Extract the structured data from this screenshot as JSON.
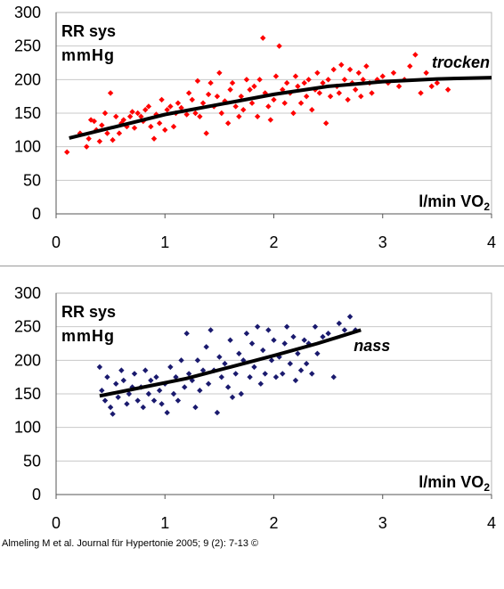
{
  "chart_data": [
    {
      "type": "scatter",
      "ylabel": "RR sys",
      "yunit": "mmHg",
      "xlabel_prefix": "l/min VO",
      "xlabel_sub": "2",
      "series_label": "trocken",
      "point_color": "#ff0000",
      "trend_color": "#000000",
      "xlim": [
        0,
        4
      ],
      "ylim": [
        0,
        300
      ],
      "xticks": [
        0,
        1,
        2,
        3,
        4
      ],
      "yticks": [
        0,
        50,
        100,
        150,
        200,
        250,
        300
      ],
      "grid": "horizontal",
      "trend": {
        "x": [
          0.12,
          0.5,
          1.0,
          1.5,
          2.0,
          2.5,
          3.0,
          3.5,
          4.0
        ],
        "y": [
          113,
          128,
          148,
          163,
          178,
          190,
          197,
          201,
          203
        ]
      },
      "points": [
        [
          0.1,
          92
        ],
        [
          0.22,
          120
        ],
        [
          0.28,
          100
        ],
        [
          0.3,
          112
        ],
        [
          0.32,
          140
        ],
        [
          0.35,
          138
        ],
        [
          0.37,
          125
        ],
        [
          0.4,
          108
        ],
        [
          0.42,
          132
        ],
        [
          0.45,
          150
        ],
        [
          0.47,
          120
        ],
        [
          0.5,
          180
        ],
        [
          0.52,
          110
        ],
        [
          0.55,
          145
        ],
        [
          0.58,
          120
        ],
        [
          0.6,
          135
        ],
        [
          0.62,
          140
        ],
        [
          0.65,
          130
        ],
        [
          0.68,
          145
        ],
        [
          0.7,
          152
        ],
        [
          0.72,
          128
        ],
        [
          0.75,
          150
        ],
        [
          0.78,
          145
        ],
        [
          0.8,
          138
        ],
        [
          0.82,
          155
        ],
        [
          0.85,
          160
        ],
        [
          0.87,
          130
        ],
        [
          0.9,
          112
        ],
        [
          0.92,
          148
        ],
        [
          0.95,
          135
        ],
        [
          0.97,
          170
        ],
        [
          1.0,
          125
        ],
        [
          1.02,
          155
        ],
        [
          1.05,
          160
        ],
        [
          1.08,
          130
        ],
        [
          1.1,
          150
        ],
        [
          1.12,
          165
        ],
        [
          1.15,
          158
        ],
        [
          1.2,
          148
        ],
        [
          1.22,
          180
        ],
        [
          1.25,
          170
        ],
        [
          1.28,
          150
        ],
        [
          1.3,
          198
        ],
        [
          1.32,
          145
        ],
        [
          1.35,
          165
        ],
        [
          1.38,
          120
        ],
        [
          1.4,
          178
        ],
        [
          1.42,
          195
        ],
        [
          1.45,
          160
        ],
        [
          1.48,
          175
        ],
        [
          1.5,
          210
        ],
        [
          1.52,
          150
        ],
        [
          1.55,
          168
        ],
        [
          1.58,
          135
        ],
        [
          1.6,
          185
        ],
        [
          1.62,
          195
        ],
        [
          1.65,
          160
        ],
        [
          1.68,
          145
        ],
        [
          1.7,
          175
        ],
        [
          1.72,
          155
        ],
        [
          1.75,
          200
        ],
        [
          1.78,
          185
        ],
        [
          1.8,
          165
        ],
        [
          1.82,
          190
        ],
        [
          1.85,
          145
        ],
        [
          1.87,
          200
        ],
        [
          1.9,
          262
        ],
        [
          1.92,
          180
        ],
        [
          1.95,
          160
        ],
        [
          1.97,
          140
        ],
        [
          2.0,
          170
        ],
        [
          2.02,
          205
        ],
        [
          2.05,
          250
        ],
        [
          2.08,
          185
        ],
        [
          2.1,
          165
        ],
        [
          2.12,
          195
        ],
        [
          2.15,
          180
        ],
        [
          2.18,
          150
        ],
        [
          2.2,
          205
        ],
        [
          2.22,
          190
        ],
        [
          2.25,
          165
        ],
        [
          2.28,
          195
        ],
        [
          2.3,
          175
        ],
        [
          2.32,
          200
        ],
        [
          2.35,
          155
        ],
        [
          2.38,
          185
        ],
        [
          2.4,
          210
        ],
        [
          2.42,
          180
        ],
        [
          2.45,
          195
        ],
        [
          2.48,
          135
        ],
        [
          2.5,
          200
        ],
        [
          2.52,
          175
        ],
        [
          2.55,
          215
        ],
        [
          2.58,
          190
        ],
        [
          2.6,
          180
        ],
        [
          2.62,
          222
        ],
        [
          2.65,
          200
        ],
        [
          2.68,
          170
        ],
        [
          2.7,
          215
        ],
        [
          2.72,
          195
        ],
        [
          2.75,
          185
        ],
        [
          2.78,
          210
        ],
        [
          2.8,
          175
        ],
        [
          2.82,
          200
        ],
        [
          2.85,
          220
        ],
        [
          2.88,
          195
        ],
        [
          2.9,
          180
        ],
        [
          2.95,
          200
        ],
        [
          3.0,
          205
        ],
        [
          3.05,
          195
        ],
        [
          3.1,
          210
        ],
        [
          3.15,
          190
        ],
        [
          3.2,
          200
        ],
        [
          3.25,
          220
        ],
        [
          3.3,
          237
        ],
        [
          3.35,
          180
        ],
        [
          3.4,
          210
        ],
        [
          3.45,
          190
        ],
        [
          3.5,
          195
        ],
        [
          3.6,
          185
        ]
      ]
    },
    {
      "type": "scatter",
      "ylabel": "RR sys",
      "yunit": "mmHg",
      "xlabel_prefix": "l/min VO",
      "xlabel_sub": "2",
      "series_label": "nass",
      "point_color": "#1a1a6e",
      "trend_color": "#000000",
      "xlim": [
        0,
        4
      ],
      "ylim": [
        0,
        300
      ],
      "xticks": [
        0,
        1,
        2,
        3,
        4
      ],
      "yticks": [
        0,
        50,
        100,
        150,
        200,
        250,
        300
      ],
      "grid": "horizontal",
      "trend": {
        "x": [
          0.4,
          0.8,
          1.2,
          1.6,
          2.0,
          2.4,
          2.8
        ],
        "y": [
          147,
          160,
          173,
          190,
          207,
          225,
          245
        ]
      },
      "points": [
        [
          0.4,
          190
        ],
        [
          0.42,
          155
        ],
        [
          0.45,
          140
        ],
        [
          0.47,
          175
        ],
        [
          0.5,
          130
        ],
        [
          0.52,
          120
        ],
        [
          0.55,
          165
        ],
        [
          0.57,
          145
        ],
        [
          0.6,
          185
        ],
        [
          0.62,
          170
        ],
        [
          0.65,
          135
        ],
        [
          0.67,
          150
        ],
        [
          0.7,
          160
        ],
        [
          0.72,
          180
        ],
        [
          0.75,
          140
        ],
        [
          0.78,
          160
        ],
        [
          0.8,
          130
        ],
        [
          0.82,
          185
        ],
        [
          0.85,
          150
        ],
        [
          0.87,
          170
        ],
        [
          0.9,
          140
        ],
        [
          0.92,
          175
        ],
        [
          0.95,
          155
        ],
        [
          0.97,
          135
        ],
        [
          1.0,
          165
        ],
        [
          1.02,
          122
        ],
        [
          1.05,
          190
        ],
        [
          1.08,
          150
        ],
        [
          1.1,
          175
        ],
        [
          1.12,
          140
        ],
        [
          1.15,
          200
        ],
        [
          1.18,
          160
        ],
        [
          1.2,
          240
        ],
        [
          1.22,
          180
        ],
        [
          1.25,
          170
        ],
        [
          1.28,
          130
        ],
        [
          1.3,
          200
        ],
        [
          1.32,
          155
        ],
        [
          1.35,
          185
        ],
        [
          1.38,
          220
        ],
        [
          1.4,
          165
        ],
        [
          1.42,
          245
        ],
        [
          1.45,
          185
        ],
        [
          1.48,
          122
        ],
        [
          1.5,
          205
        ],
        [
          1.52,
          175
        ],
        [
          1.55,
          195
        ],
        [
          1.58,
          160
        ],
        [
          1.6,
          230
        ],
        [
          1.62,
          145
        ],
        [
          1.65,
          180
        ],
        [
          1.68,
          210
        ],
        [
          1.7,
          150
        ],
        [
          1.72,
          200
        ],
        [
          1.75,
          240
        ],
        [
          1.78,
          175
        ],
        [
          1.8,
          225
        ],
        [
          1.82,
          190
        ],
        [
          1.85,
          250
        ],
        [
          1.88,
          165
        ],
        [
          1.9,
          215
        ],
        [
          1.92,
          180
        ],
        [
          1.95,
          245
        ],
        [
          1.98,
          200
        ],
        [
          2.0,
          230
        ],
        [
          2.02,
          175
        ],
        [
          2.05,
          205
        ],
        [
          2.08,
          180
        ],
        [
          2.1,
          225
        ],
        [
          2.12,
          250
        ],
        [
          2.15,
          195
        ],
        [
          2.18,
          235
        ],
        [
          2.2,
          170
        ],
        [
          2.22,
          210
        ],
        [
          2.25,
          185
        ],
        [
          2.28,
          230
        ],
        [
          2.3,
          195
        ],
        [
          2.32,
          225
        ],
        [
          2.35,
          180
        ],
        [
          2.38,
          250
        ],
        [
          2.4,
          210
        ],
        [
          2.45,
          235
        ],
        [
          2.5,
          240
        ],
        [
          2.55,
          175
        ],
        [
          2.6,
          255
        ],
        [
          2.65,
          245
        ],
        [
          2.7,
          265
        ],
        [
          2.75,
          245
        ]
      ]
    }
  ],
  "credit": {
    "text": "Almeling M et al. Journal für Hypertonie 2005; 9 (2): 7-13",
    "copyright_symbol": "©"
  }
}
